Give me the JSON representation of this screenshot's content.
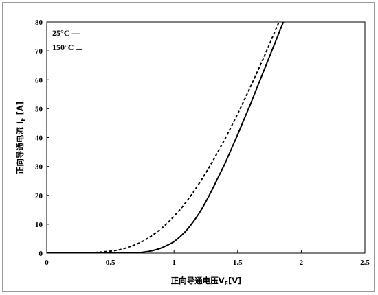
{
  "chart_data": {
    "type": "line",
    "xlabel": "正向导通电压V",
    "xlabel_sub": "F",
    "xlabel_unit": "[V]",
    "ylabel": "正向导通电流 I",
    "ylabel_sub": "F",
    "ylabel_unit": " [A]",
    "xlim": [
      0,
      2.5
    ],
    "ylim": [
      0,
      80
    ],
    "xticks": [
      0,
      0.5,
      1,
      1.5,
      2,
      2.5
    ],
    "xtick_labels": [
      "0",
      "0.5",
      "1",
      "1.5",
      "2",
      "2.5"
    ],
    "yticks": [
      0,
      10,
      20,
      30,
      40,
      50,
      60,
      70,
      80
    ],
    "ytick_labels": [
      "0",
      "10",
      "20",
      "30",
      "40",
      "50",
      "60",
      "70",
      "80"
    ],
    "grid": false,
    "legend_placement": "top-left",
    "series": [
      {
        "name": "25°C",
        "legend_mark": "—",
        "style": "solid",
        "color": "#000000",
        "x": [
          0,
          0.3,
          0.6,
          0.7,
          0.75,
          0.8,
          0.85,
          0.9,
          0.95,
          1.0,
          1.05,
          1.1,
          1.15,
          1.2,
          1.25,
          1.3,
          1.35,
          1.4,
          1.45,
          1.5,
          1.55,
          1.6,
          1.65,
          1.7,
          1.75,
          1.8,
          1.85,
          1.9
        ],
        "y": [
          0,
          0,
          0,
          0.1,
          0.3,
          0.6,
          1.1,
          1.8,
          2.8,
          4.0,
          5.8,
          8.0,
          10.8,
          14.0,
          17.8,
          22.0,
          26.5,
          31.0,
          36.0,
          41.0,
          46.3,
          51.5,
          57.0,
          62.5,
          68.0,
          73.5,
          79.0,
          84.0
        ]
      },
      {
        "name": "150°C",
        "legend_mark": "...",
        "style": "dashed",
        "color": "#000000",
        "x": [
          0,
          0.2,
          0.3,
          0.4,
          0.5,
          0.55,
          0.6,
          0.65,
          0.7,
          0.75,
          0.8,
          0.85,
          0.9,
          0.95,
          1.0,
          1.05,
          1.1,
          1.15,
          1.2,
          1.25,
          1.3,
          1.35,
          1.4,
          1.45,
          1.5,
          1.55,
          1.6,
          1.65,
          1.7,
          1.75,
          1.8,
          1.85
        ],
        "y": [
          0,
          0,
          0.1,
          0.3,
          0.7,
          1.0,
          1.5,
          2.2,
          3.0,
          4.0,
          5.3,
          6.8,
          8.5,
          10.5,
          12.8,
          15.2,
          18.0,
          21.0,
          24.3,
          27.8,
          31.5,
          35.5,
          39.5,
          43.8,
          48.2,
          52.8,
          57.5,
          62.3,
          67.2,
          72.3,
          77.5,
          82.5
        ]
      }
    ]
  }
}
